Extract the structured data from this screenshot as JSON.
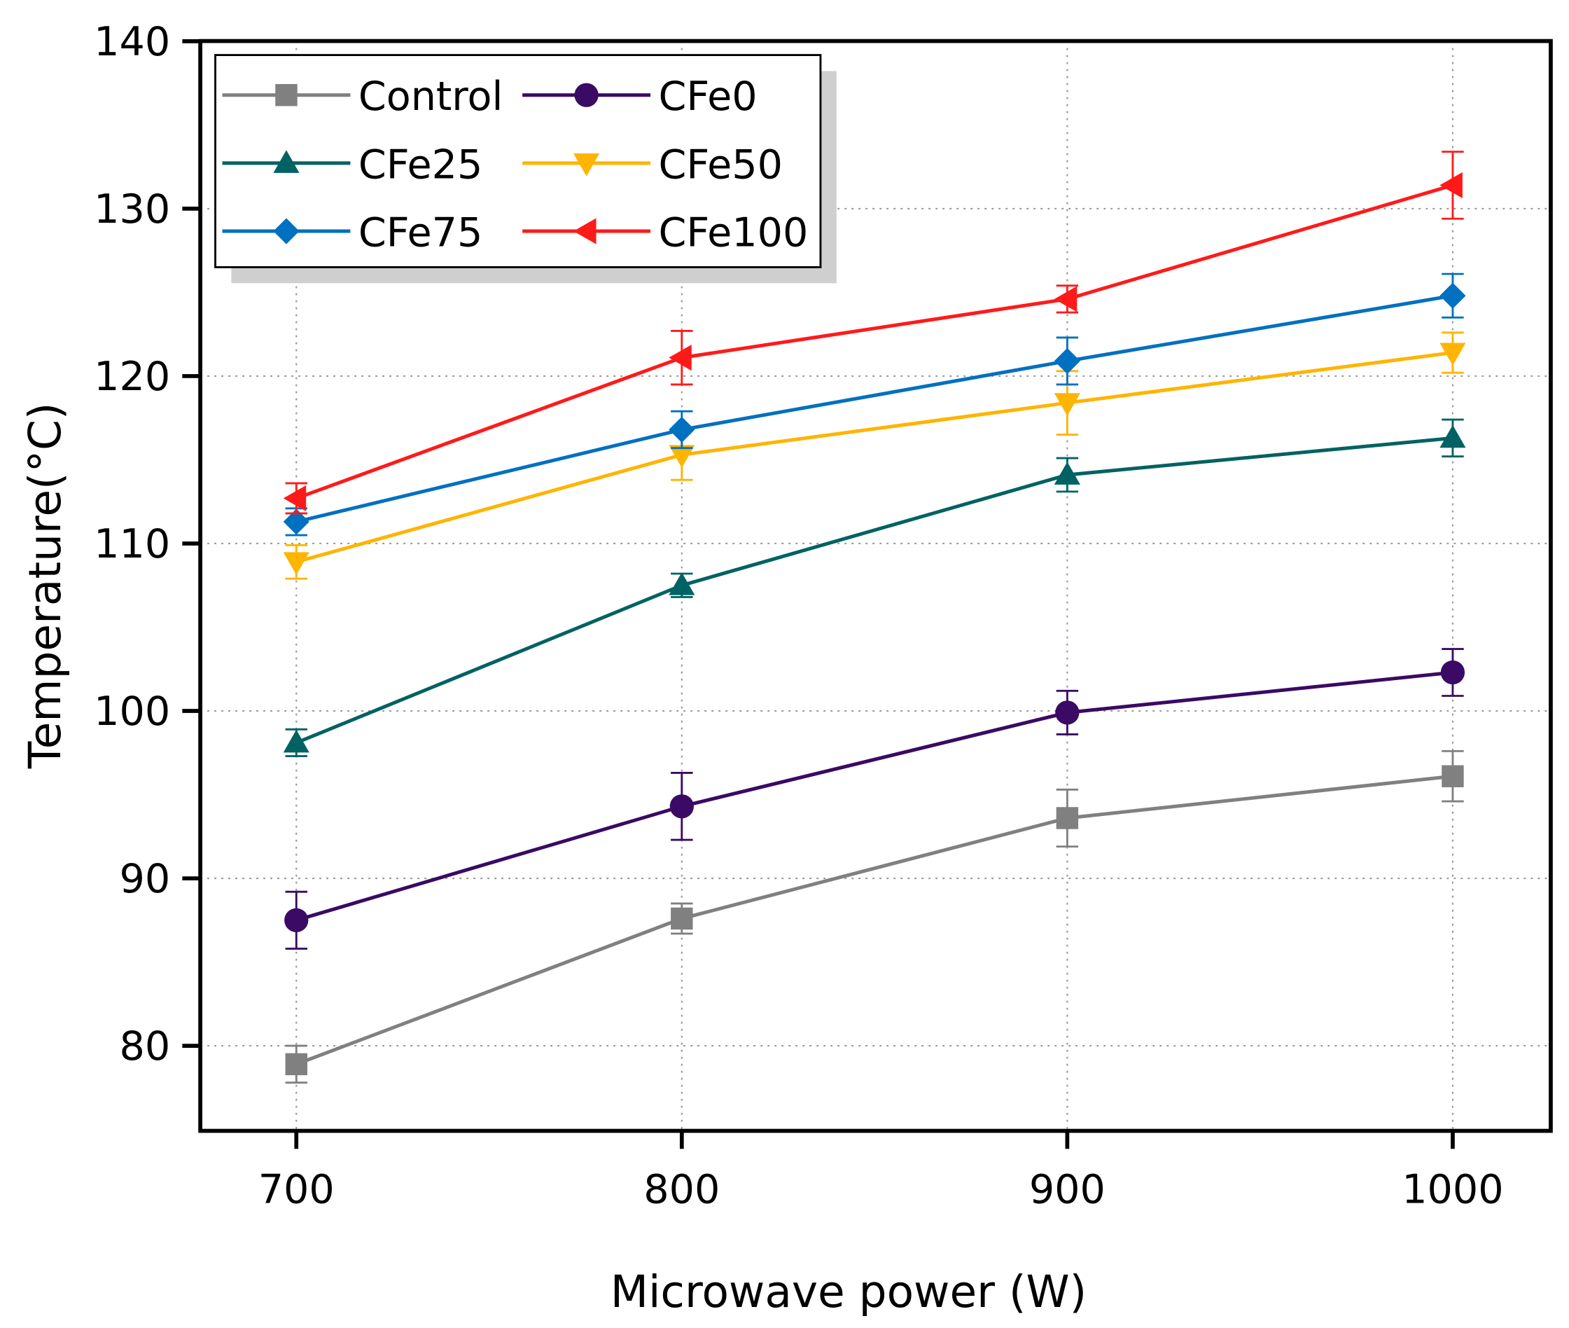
{
  "chart_data": {
    "type": "line",
    "title": "",
    "xlabel": "Microwave power (W)",
    "ylabel": "Temperature(°C)",
    "x": [
      700,
      800,
      900,
      1000
    ],
    "xlim": [
      675,
      1025
    ],
    "ylim": [
      75,
      140
    ],
    "xticks": [
      "700",
      "800",
      "900",
      "1000"
    ],
    "yticks": [
      "80",
      "90",
      "100",
      "110",
      "120",
      "130",
      "140"
    ],
    "grid": true,
    "legend_position": "top-left",
    "series": [
      {
        "name": "Control",
        "color": "#808080",
        "marker": "square",
        "values": [
          78.9,
          87.6,
          93.6,
          96.1
        ],
        "errors": [
          1.1,
          0.9,
          1.7,
          1.5
        ]
      },
      {
        "name": "CFe0",
        "color": "#3a0a64",
        "marker": "circle",
        "values": [
          87.5,
          94.3,
          99.9,
          102.3
        ],
        "errors": [
          1.7,
          2.0,
          1.3,
          1.4
        ]
      },
      {
        "name": "CFe25",
        "color": "#006262",
        "marker": "triangle-up",
        "values": [
          98.1,
          107.5,
          114.1,
          116.3
        ],
        "errors": [
          0.8,
          0.7,
          1.0,
          1.1
        ]
      },
      {
        "name": "CFe50",
        "color": "#ffb400",
        "marker": "triangle-down",
        "values": [
          108.9,
          115.3,
          118.4,
          121.4
        ],
        "errors": [
          1.0,
          1.5,
          1.9,
          1.2
        ]
      },
      {
        "name": "CFe75",
        "color": "#0070c0",
        "marker": "diamond",
        "values": [
          111.3,
          116.8,
          120.9,
          124.8
        ],
        "errors": [
          0.8,
          1.1,
          1.4,
          1.3
        ]
      },
      {
        "name": "CFe100",
        "color": "#ff1a1a",
        "marker": "triangle-left",
        "values": [
          112.7,
          121.1,
          124.6,
          131.4
        ],
        "errors": [
          0.9,
          1.6,
          0.8,
          2.0
        ]
      }
    ]
  }
}
